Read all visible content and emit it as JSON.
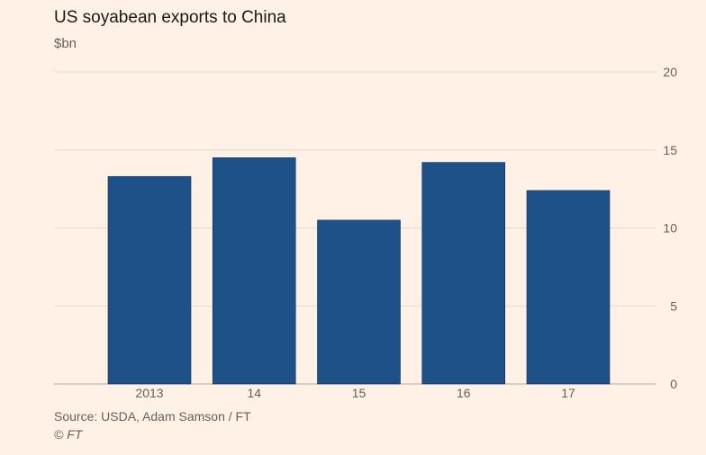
{
  "chart_data": {
    "type": "bar",
    "title": "US soyabean exports to China",
    "subtitle": "$bn",
    "xlabel": "",
    "ylabel": "$bn",
    "categories": [
      "2013",
      "14",
      "15",
      "16",
      "17"
    ],
    "values": [
      13.3,
      14.5,
      10.5,
      14.2,
      12.4
    ],
    "ylim": [
      0,
      20
    ],
    "yticks": [
      0,
      5,
      10,
      15,
      20
    ],
    "grid": true,
    "bar_color": "#1f5189",
    "source": "Source: USDA, Adam Samson / FT",
    "copyright": "© FT"
  }
}
